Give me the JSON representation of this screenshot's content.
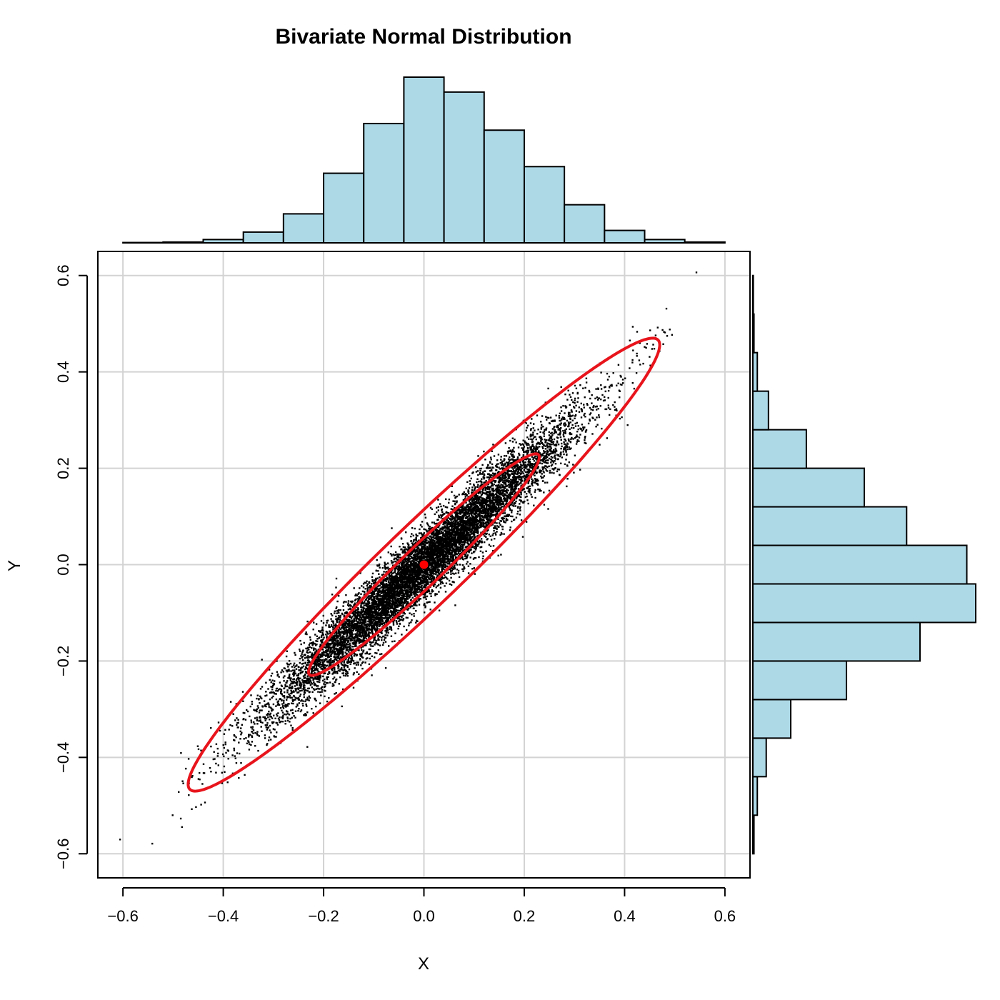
{
  "chart_data": {
    "type": "scatter",
    "title": "Bivariate Normal Distribution",
    "xlabel": "X",
    "ylabel": "Y",
    "xlim": [
      -0.65,
      0.65
    ],
    "ylim": [
      -0.65,
      0.65
    ],
    "x_ticks": [
      -0.6,
      -0.4,
      -0.2,
      0.0,
      0.2,
      0.4,
      0.6
    ],
    "x_tick_labels": [
      "−0.6",
      "−0.4",
      "−0.2",
      "0.0",
      "0.2",
      "0.4",
      "0.6"
    ],
    "y_ticks": [
      -0.6,
      -0.4,
      -0.2,
      0.0,
      0.2,
      0.4,
      0.6
    ],
    "y_tick_labels": [
      "−0.6",
      "−0.4",
      "−0.2",
      "0.0",
      "0.2",
      "0.4",
      "0.6"
    ],
    "grid": true,
    "point_color": "#000000",
    "mean": {
      "x": 0.0,
      "y": 0.0,
      "color": "#ff0000"
    },
    "distribution": {
      "sd_x": 0.15,
      "sd_y": 0.15,
      "correlation": 0.97,
      "n": 10000
    },
    "ellipses": [
      {
        "level": "inner",
        "x_extent": [
          -0.23,
          0.23
        ],
        "y_extent": [
          -0.23,
          0.23
        ],
        "color": "#e8141c"
      },
      {
        "level": "outer",
        "x_extent": [
          -0.47,
          0.47
        ],
        "y_extent": [
          -0.47,
          0.47
        ],
        "color": "#e8141c"
      }
    ],
    "histogram_x": {
      "fill": "#add8e6",
      "bins": [
        -0.6,
        -0.52,
        -0.44,
        -0.36,
        -0.28,
        -0.2,
        -0.12,
        -0.04,
        0.04,
        0.12,
        0.2,
        0.28,
        0.36,
        0.44,
        0.52,
        0.6
      ],
      "heights": [
        0.002,
        0.005,
        0.02,
        0.065,
        0.175,
        0.42,
        0.72,
        1.0,
        0.91,
        0.68,
        0.46,
        0.23,
        0.075,
        0.02,
        0.005
      ]
    },
    "histogram_y": {
      "fill": "#add8e6",
      "bins": [
        -0.6,
        -0.52,
        -0.44,
        -0.36,
        -0.28,
        -0.2,
        -0.12,
        -0.04,
        0.04,
        0.12,
        0.2,
        0.28,
        0.36,
        0.44,
        0.52,
        0.6
      ],
      "heights": [
        0.005,
        0.02,
        0.06,
        0.17,
        0.42,
        0.75,
        1.0,
        0.96,
        0.69,
        0.5,
        0.24,
        0.07,
        0.02,
        0.005,
        0.002
      ]
    }
  }
}
